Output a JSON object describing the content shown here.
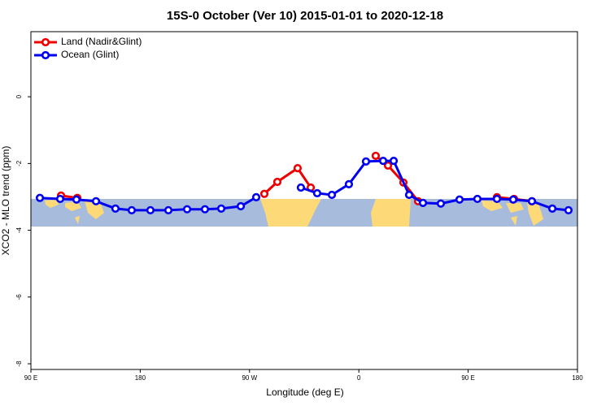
{
  "chart_data": {
    "type": "line",
    "title": "15S-0 October (Ver 10)   2015-01-01 to 2020-12-18",
    "x_label": "Longitude (deg E)",
    "y_label": "XCO2 - MLO trend (ppm)",
    "xlim": [
      90,
      540
    ],
    "ylim": [
      -8.17,
      1.95
    ],
    "xticks": [
      {
        "value": 90,
        "label": "90 E"
      },
      {
        "value": 180,
        "label": "180"
      },
      {
        "value": 270,
        "label": "90 W"
      },
      {
        "value": 360,
        "label": "0"
      },
      {
        "value": 450,
        "label": "90 E"
      },
      {
        "value": 540,
        "label": "180"
      }
    ],
    "yticks": [
      0,
      -2,
      -4,
      -6,
      -8
    ],
    "legend": "top-left",
    "series": [
      {
        "name": "Land (Nadir&Glint)",
        "color": "#ee0000",
        "x": [
          114.8,
          128.2,
          null,
          282.2,
          292.9,
          309.6,
          320.4,
          null,
          373.9,
          384.0,
          396.7,
          408.8,
          null,
          473.7,
          487.8,
          502.5
        ],
        "values": [
          -2.96,
          -3.03,
          null,
          -2.91,
          -2.55,
          -2.14,
          -2.72,
          null,
          -1.77,
          -2.06,
          -2.57,
          -3.13,
          null,
          -3.01,
          -3.06,
          -3.13
        ]
      },
      {
        "name": "Ocean (Glint)",
        "color": "#0000ee",
        "x": [
          97.4,
          114.1,
          127.5,
          143.6,
          159.6,
          173.0,
          188.4,
          203.2,
          218.6,
          233.3,
          246.7,
          262.8,
          275.5,
          null,
          312.3,
          325.7,
          337.8,
          351.8,
          365.9,
          380.0,
          388.7,
          401.4,
          412.8,
          427.5,
          442.9,
          457.6,
          473.7,
          487.1,
          502.5,
          519.3,
          532.6
        ],
        "values": [
          -3.03,
          -3.06,
          -3.08,
          -3.13,
          -3.35,
          -3.4,
          -3.4,
          -3.4,
          -3.37,
          -3.37,
          -3.35,
          -3.28,
          -3.01,
          null,
          -2.72,
          -2.89,
          -2.94,
          -2.62,
          -1.94,
          -1.92,
          -1.92,
          -2.94,
          -3.18,
          -3.2,
          -3.08,
          -3.06,
          -3.06,
          -3.08,
          -3.13,
          -3.35,
          -3.4
        ]
      }
    ]
  }
}
